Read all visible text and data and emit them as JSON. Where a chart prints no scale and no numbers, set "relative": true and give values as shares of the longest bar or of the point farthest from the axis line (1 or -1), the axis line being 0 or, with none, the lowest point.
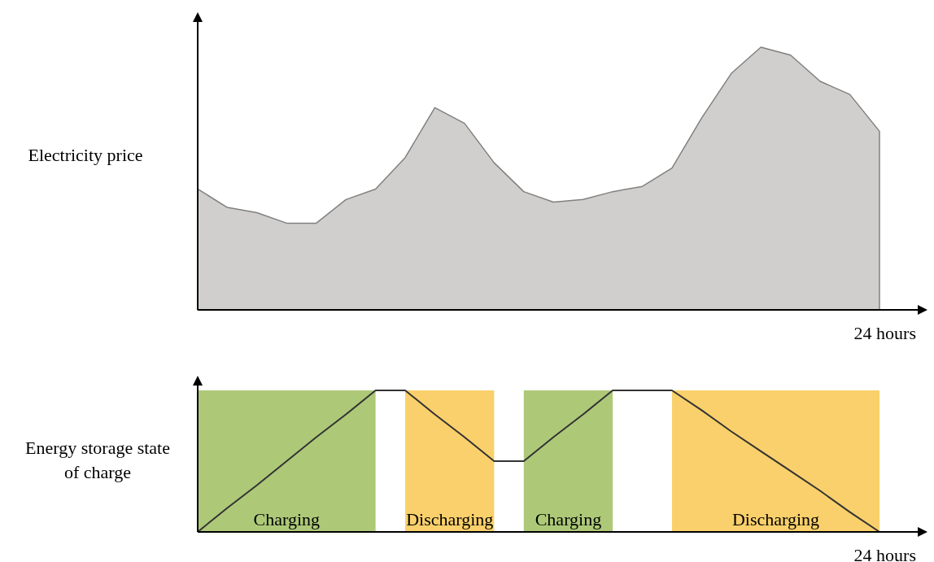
{
  "chart_data": [
    {
      "type": "area",
      "ylabel": "Electricity price",
      "xlabel": "24 hours",
      "relative": true,
      "color": "#d0cfcd",
      "categories": [
        null,
        null,
        null,
        null,
        null,
        null,
        null,
        null,
        null,
        null,
        null,
        null,
        null,
        null,
        null,
        null,
        null,
        null,
        null,
        null,
        null,
        null,
        null,
        null
      ],
      "values": [
        0.46,
        0.39,
        0.37,
        0.33,
        0.33,
        0.42,
        0.46,
        0.58,
        0.77,
        0.71,
        0.56,
        0.45,
        0.41,
        0.42,
        0.45,
        0.47,
        0.54,
        0.73,
        0.9,
        1,
        0.97,
        0.87,
        0.82,
        0.68
      ]
    },
    {
      "type": "line",
      "ylabel": "Energy storage state of charge",
      "xlabel": "24 hours",
      "relative": true,
      "color": "#333333",
      "categories": [
        null,
        null,
        null,
        null,
        null,
        null,
        null,
        null,
        null,
        null,
        null,
        null,
        null,
        null,
        null,
        null,
        null,
        null,
        null,
        null,
        null,
        null,
        null,
        null
      ],
      "values": [
        0,
        0.17,
        0.33,
        0.5,
        0.67,
        0.83,
        1,
        1,
        0.83,
        0.67,
        0.5,
        0.5,
        0.67,
        0.83,
        1,
        1,
        1,
        0.86,
        0.71,
        0.57,
        0.43,
        0.29,
        0.14,
        0
      ],
      "annotations": [
        "Charging",
        "Discharging",
        "Charging",
        "Discharging"
      ]
    }
  ]
}
